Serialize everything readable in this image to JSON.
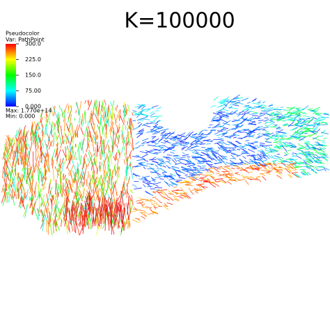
{
  "title": "K=100000",
  "legend": {
    "plot": "Pseudocolor",
    "variable": "Var: PathPoint",
    "ticks": [
      "300.0",
      "225.0",
      "150.0",
      "75.00",
      "0.000"
    ],
    "max": "Max: 1.770e+14",
    "min": "Min: 0.000"
  }
}
